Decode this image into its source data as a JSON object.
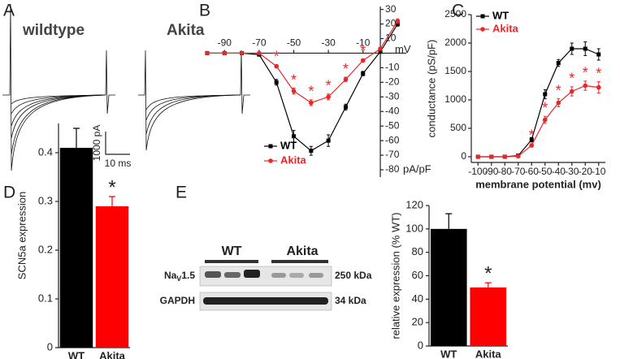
{
  "panel_a": {
    "label": "A",
    "titles": [
      "wildtype",
      "Akita"
    ],
    "scale_current": "1000 pA",
    "scale_time": "10 ms"
  },
  "blot": {
    "label": "E",
    "groups": [
      "WT",
      "Akita"
    ],
    "rows": [
      {
        "name": "Na",
        "sub": "V",
        "suffix": "1.5",
        "size": "250 kDa"
      },
      {
        "name": "GAPDH",
        "size": "34 kDa"
      }
    ]
  },
  "chart_data": [
    {
      "type": "line",
      "label": "B",
      "x": [
        -100,
        -90,
        -80,
        -70,
        -60,
        -50,
        -40,
        -30,
        -20,
        -10,
        0,
        10
      ],
      "xlabel": "mV",
      "ylabel": "pA/pF",
      "xlim": [
        -100,
        15
      ],
      "ylim": [
        -85,
        32
      ],
      "xticks": [
        -90,
        -70,
        -50,
        -30,
        -10
      ],
      "yticks": [
        30,
        20,
        10,
        -10,
        -20,
        -30,
        -40,
        -50,
        -60,
        -70,
        -80
      ],
      "axes": "origin",
      "legend": "lower left",
      "series": [
        {
          "name": "WT",
          "color": "#000000",
          "marker": "square",
          "values": [
            0,
            0,
            0,
            -1,
            -20,
            -57,
            -67,
            -60,
            -37,
            -14,
            1,
            20
          ],
          "errors": [
            0,
            0,
            0,
            0.5,
            2,
            4,
            3,
            4,
            2,
            1.5,
            1,
            1.5
          ]
        },
        {
          "name": "Akita",
          "color": "#e8272a",
          "marker": "circle",
          "values": [
            0,
            0,
            0,
            0,
            -9,
            -26,
            -34,
            -30,
            -18,
            -5,
            3,
            22
          ],
          "errors": [
            0,
            0,
            0,
            0,
            1,
            2,
            2,
            2,
            1.5,
            1,
            1,
            1.5
          ],
          "markers": [
            null,
            null,
            null,
            null,
            "*",
            "*",
            "*",
            "*",
            "*",
            "*",
            null,
            null
          ]
        }
      ]
    },
    {
      "type": "line",
      "label": "C",
      "x": [
        -100,
        -90,
        -80,
        -70,
        -60,
        -50,
        -40,
        -30,
        -20,
        -10
      ],
      "xlabel": "membrane potential (mv)",
      "ylabel": "conductance (pS/pF)",
      "xlim": [
        -105,
        -5
      ],
      "ylim": [
        -100,
        2500
      ],
      "xticks": [
        -100,
        -90,
        -80,
        -70,
        -60,
        -50,
        -40,
        -30,
        -20,
        -10
      ],
      "yticks": [
        0,
        500,
        1000,
        1500,
        2000,
        2500
      ],
      "axes": "left-bottom",
      "legend": "upper left",
      "series": [
        {
          "name": "WT",
          "color": "#000000",
          "marker": "square",
          "values": [
            0,
            0,
            0,
            20,
            300,
            1100,
            1650,
            1900,
            1900,
            1800
          ],
          "errors": [
            0,
            0,
            0,
            10,
            40,
            80,
            60,
            100,
            120,
            100
          ]
        },
        {
          "name": "Akita",
          "color": "#e8272a",
          "marker": "circle",
          "values": [
            0,
            0,
            0,
            10,
            200,
            650,
            950,
            1150,
            1250,
            1220
          ],
          "errors": [
            0,
            0,
            0,
            5,
            30,
            60,
            70,
            80,
            80,
            100
          ],
          "markers": [
            null,
            null,
            null,
            null,
            "*",
            "*",
            "*",
            "*",
            "*",
            "*"
          ]
        }
      ]
    },
    {
      "type": "bar",
      "label": "D",
      "categories": [
        "WT",
        "Akita"
      ],
      "values": [
        0.41,
        0.29
      ],
      "errors": [
        0.04,
        0.02
      ],
      "colors": [
        "#000000",
        "#ff0000"
      ],
      "ylim": [
        0,
        0.46
      ],
      "yticks": [
        0,
        0.1,
        0.2,
        0.3,
        0.4
      ],
      "ylabel": "SCN5a expression",
      "annotations": [
        null,
        "*"
      ]
    },
    {
      "type": "bar",
      "categories": [
        "WT",
        "Akita"
      ],
      "values": [
        100,
        50
      ],
      "errors": [
        13,
        4
      ],
      "colors": [
        "#000000",
        "#ff0000"
      ],
      "ylim": [
        0,
        120
      ],
      "yticks": [
        0,
        20,
        40,
        60,
        80,
        100,
        120
      ],
      "ylabel": "relative expression (% WT)",
      "annotations": [
        null,
        "*"
      ]
    }
  ]
}
